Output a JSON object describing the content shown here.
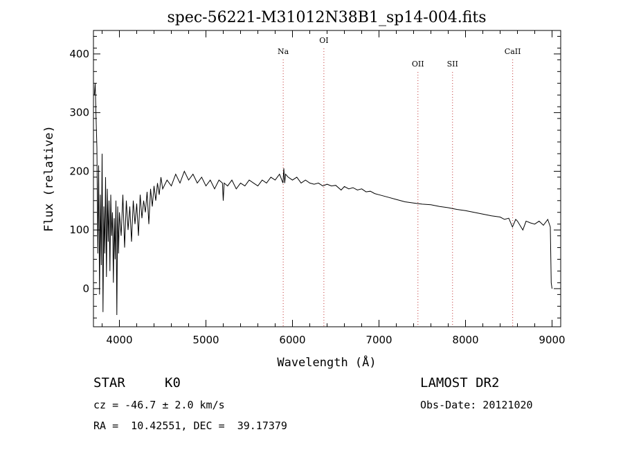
{
  "chart_data": {
    "type": "line",
    "title": "spec-56221-M31012N38B1_sp14-004.fits",
    "xlabel": "Wavelength (Å)",
    "ylabel": "Flux (relative)",
    "xlim": [
      3700,
      9100
    ],
    "ylim": [
      -65,
      440
    ],
    "xticks": [
      4000,
      5000,
      6000,
      7000,
      8000,
      9000
    ],
    "yticks": [
      0,
      100,
      200,
      300,
      400
    ],
    "grid": false,
    "series": [
      {
        "points": [
          [
            3710,
            330
          ],
          [
            3720,
            350
          ],
          [
            3730,
            290
          ],
          [
            3740,
            240
          ],
          [
            3750,
            60
          ],
          [
            3760,
            210
          ],
          [
            3770,
            -10
          ],
          [
            3780,
            160
          ],
          [
            3790,
            40
          ],
          [
            3800,
            230
          ],
          [
            3810,
            -40
          ],
          [
            3820,
            140
          ],
          [
            3830,
            60
          ],
          [
            3840,
            190
          ],
          [
            3850,
            20
          ],
          [
            3860,
            170
          ],
          [
            3870,
            80
          ],
          [
            3880,
            150
          ],
          [
            3890,
            30
          ],
          [
            3900,
            160
          ],
          [
            3910,
            90
          ],
          [
            3920,
            130
          ],
          [
            3930,
            10
          ],
          [
            3940,
            120
          ],
          [
            3950,
            50
          ],
          [
            3960,
            150
          ],
          [
            3970,
            -45
          ],
          [
            3980,
            140
          ],
          [
            3990,
            60
          ],
          [
            4000,
            130
          ],
          [
            4020,
            90
          ],
          [
            4040,
            160
          ],
          [
            4060,
            70
          ],
          [
            4080,
            150
          ],
          [
            4100,
            100
          ],
          [
            4120,
            140
          ],
          [
            4140,
            80
          ],
          [
            4160,
            150
          ],
          [
            4180,
            110
          ],
          [
            4200,
            145
          ],
          [
            4220,
            90
          ],
          [
            4240,
            160
          ],
          [
            4260,
            120
          ],
          [
            4280,
            150
          ],
          [
            4300,
            130
          ],
          [
            4320,
            165
          ],
          [
            4340,
            110
          ],
          [
            4360,
            170
          ],
          [
            4380,
            140
          ],
          [
            4400,
            175
          ],
          [
            4420,
            150
          ],
          [
            4440,
            180
          ],
          [
            4460,
            160
          ],
          [
            4480,
            190
          ],
          [
            4500,
            170
          ],
          [
            4550,
            185
          ],
          [
            4600,
            175
          ],
          [
            4650,
            195
          ],
          [
            4700,
            180
          ],
          [
            4750,
            200
          ],
          [
            4800,
            185
          ],
          [
            4850,
            195
          ],
          [
            4900,
            180
          ],
          [
            4950,
            190
          ],
          [
            5000,
            175
          ],
          [
            5050,
            185
          ],
          [
            5100,
            170
          ],
          [
            5150,
            185
          ],
          [
            5190,
            180
          ],
          [
            5200,
            150
          ],
          [
            5210,
            180
          ],
          [
            5250,
            175
          ],
          [
            5300,
            185
          ],
          [
            5350,
            170
          ],
          [
            5400,
            180
          ],
          [
            5450,
            175
          ],
          [
            5500,
            185
          ],
          [
            5550,
            180
          ],
          [
            5600,
            175
          ],
          [
            5650,
            185
          ],
          [
            5700,
            180
          ],
          [
            5750,
            190
          ],
          [
            5800,
            185
          ],
          [
            5850,
            195
          ],
          [
            5890,
            180
          ],
          [
            5900,
            205
          ],
          [
            5910,
            180
          ],
          [
            5920,
            195
          ],
          [
            5950,
            190
          ],
          [
            6000,
            185
          ],
          [
            6050,
            190
          ],
          [
            6100,
            180
          ],
          [
            6150,
            185
          ],
          [
            6200,
            180
          ],
          [
            6250,
            178
          ],
          [
            6300,
            180
          ],
          [
            6350,
            175
          ],
          [
            6400,
            178
          ],
          [
            6450,
            175
          ],
          [
            6500,
            176
          ],
          [
            6562,
            168
          ],
          [
            6600,
            174
          ],
          [
            6650,
            170
          ],
          [
            6700,
            172
          ],
          [
            6750,
            168
          ],
          [
            6800,
            170
          ],
          [
            6850,
            165
          ],
          [
            6900,
            166
          ],
          [
            6950,
            162
          ],
          [
            7000,
            160
          ],
          [
            7100,
            156
          ],
          [
            7200,
            152
          ],
          [
            7300,
            148
          ],
          [
            7400,
            146
          ],
          [
            7500,
            144
          ],
          [
            7600,
            143
          ],
          [
            7700,
            140
          ],
          [
            7800,
            138
          ],
          [
            7900,
            135
          ],
          [
            8000,
            133
          ],
          [
            8100,
            130
          ],
          [
            8200,
            127
          ],
          [
            8300,
            124
          ],
          [
            8400,
            122
          ],
          [
            8450,
            118
          ],
          [
            8500,
            120
          ],
          [
            8542,
            105
          ],
          [
            8580,
            118
          ],
          [
            8600,
            115
          ],
          [
            8662,
            100
          ],
          [
            8700,
            115
          ],
          [
            8750,
            112
          ],
          [
            8800,
            110
          ],
          [
            8850,
            115
          ],
          [
            8900,
            108
          ],
          [
            8950,
            118
          ],
          [
            8980,
            105
          ],
          [
            8990,
            10
          ],
          [
            9000,
            0
          ]
        ]
      }
    ],
    "line_markers": [
      {
        "label": "Na",
        "x": 5893,
        "color": "#c03030"
      },
      {
        "label": "OI",
        "x": 6363,
        "color": "#c03030"
      },
      {
        "label": "OII",
        "x": 7450,
        "color": "#c03030"
      },
      {
        "label": "SII",
        "x": 7850,
        "color": "#c03030"
      },
      {
        "label": "CaII",
        "x": 8545,
        "color": "#c03030"
      }
    ]
  },
  "info": {
    "object": "STAR",
    "subclass": "K0",
    "survey": "LAMOST DR2",
    "redshift": "cz = -46.7 ± 2.0 km/s",
    "obs_date": "Obs-Date: 20121020",
    "coords": "RA =  10.42551, DEC =  39.17379"
  }
}
